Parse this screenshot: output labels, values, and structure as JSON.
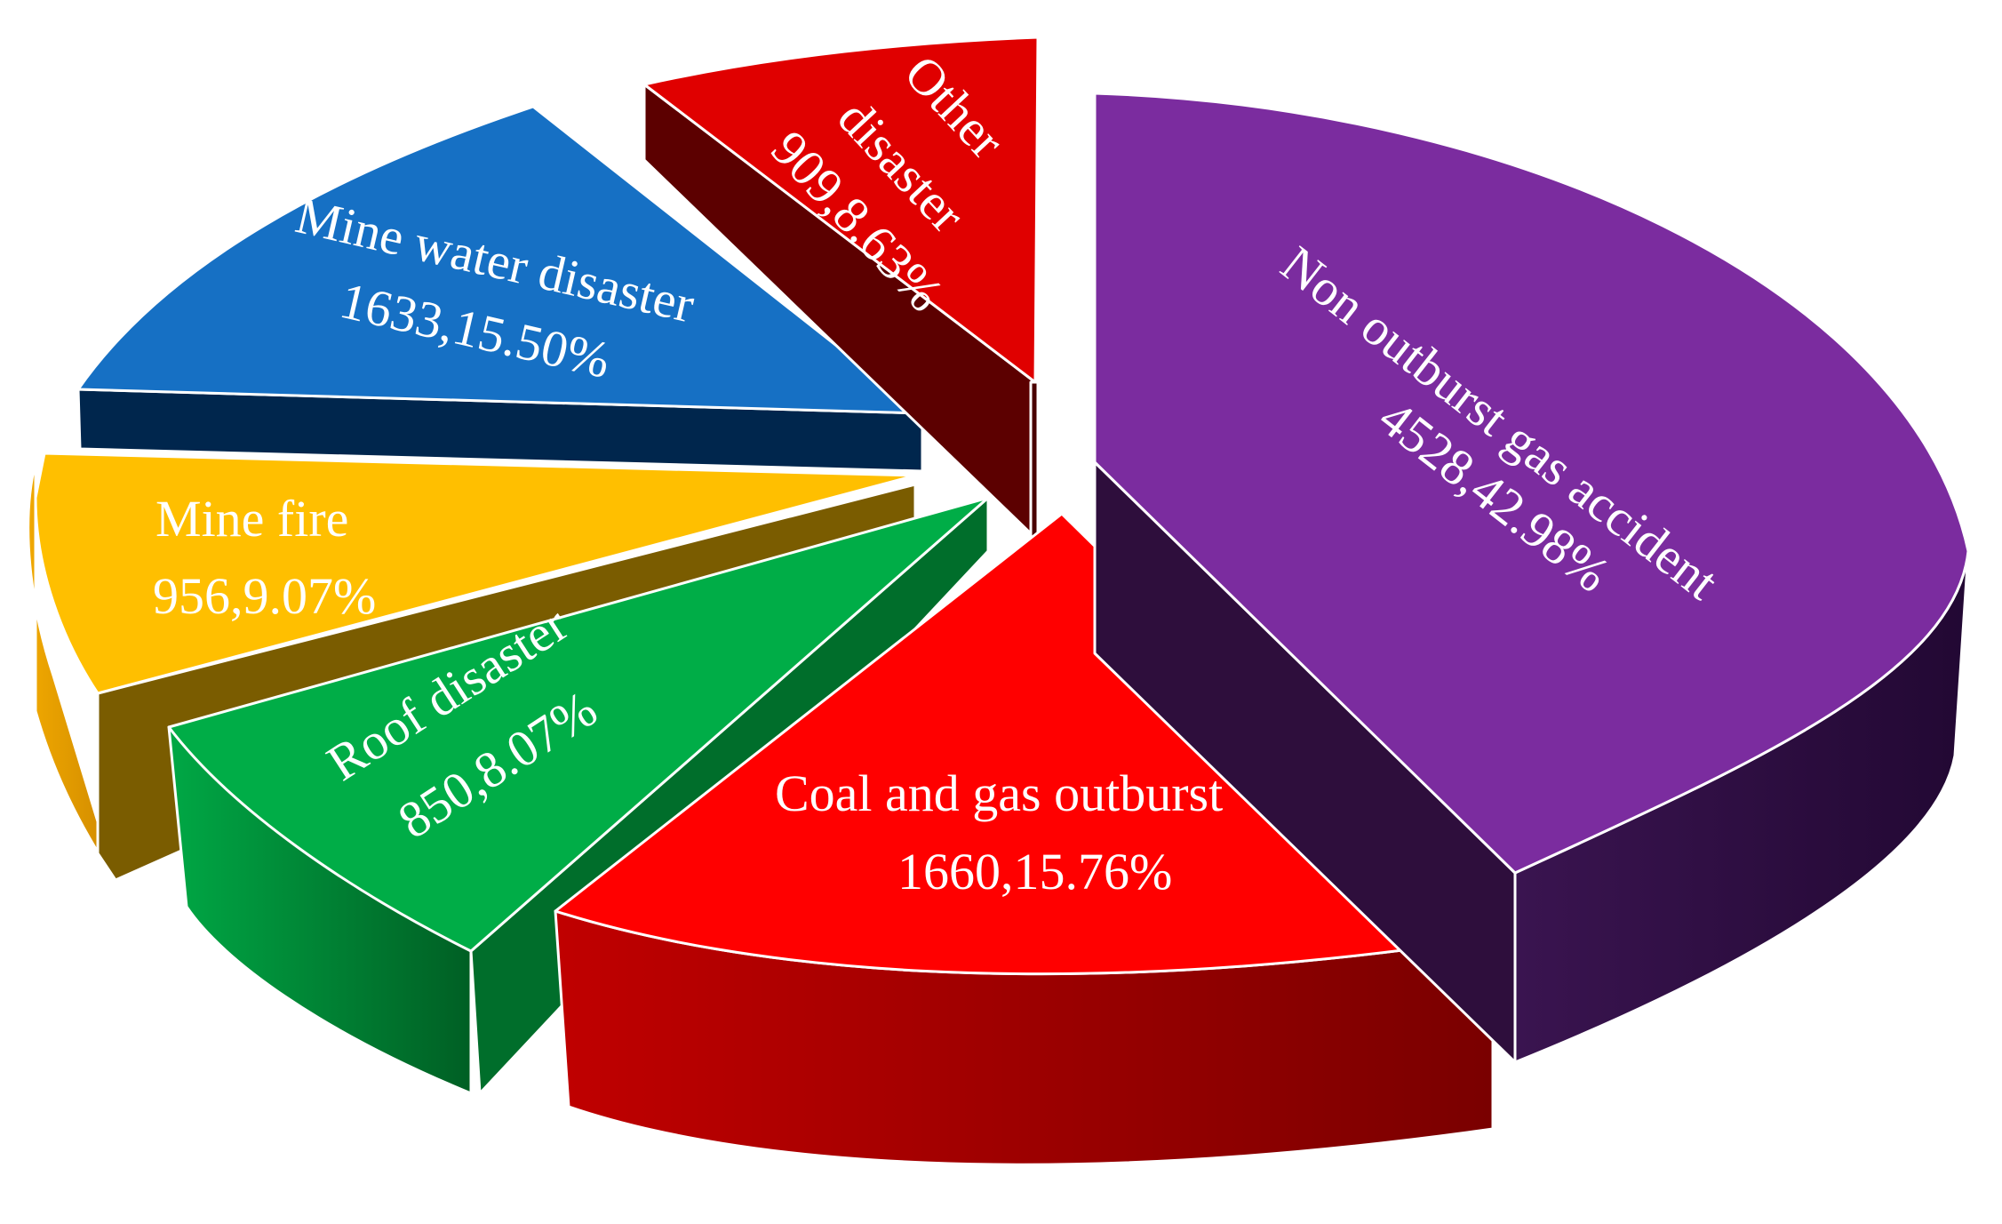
{
  "chart_data": {
    "type": "pie",
    "style": "3d-exploded",
    "title": "",
    "slices": [
      {
        "name": "Non outburst gas accident",
        "value": 4528,
        "percent": "42.98%",
        "label_value": "4528,42.98%",
        "color": "#7B2C9F",
        "side_color": "#2E0E3C"
      },
      {
        "name": "Coal and gas outburst",
        "value": 1660,
        "percent": "15.76%",
        "label_value": "1660,15.76%",
        "color": "#FF0000",
        "side_color": "#8E0000"
      },
      {
        "name": "Roof disaster",
        "value": 850,
        "percent": "8.07%",
        "label_value": "850,8.07%",
        "color": "#00AD47",
        "side_color": "#006E2B"
      },
      {
        "name": "Mine fire",
        "value": 956,
        "percent": "9.07%",
        "label_value": "956,9.07%",
        "color": "#FFBF00",
        "side_color": "#7A5C00"
      },
      {
        "name": "Mine water disaster",
        "value": 1633,
        "percent": "15.50%",
        "label_value": "1633,15.50%",
        "color": "#1670C4",
        "side_color": "#00264D"
      },
      {
        "name": "Other",
        "name_line2": "disaster",
        "value": 909,
        "percent": "8.63%",
        "label_value": "909,8.63%",
        "color": "#E00000",
        "side_color": "#5C0000"
      }
    ]
  }
}
